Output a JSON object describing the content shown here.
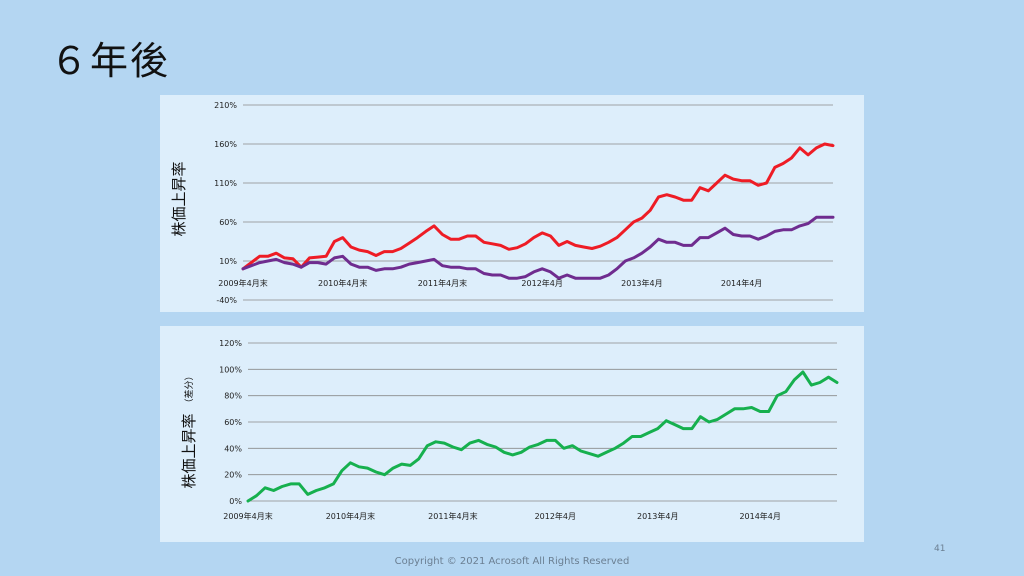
{
  "slide": {
    "title": "６年後",
    "footer": "Copyright © 2021  Acrosoft All Rights Reserved",
    "page_number": "41"
  },
  "chart_data": [
    {
      "type": "line",
      "ylabel": "株価上昇率",
      "ylabel_sub": "",
      "yticks": [
        "210%",
        "160%",
        "110%",
        "60%",
        "10%",
        "-40%"
      ],
      "ylim": [
        -40,
        210
      ],
      "xtick_labels": [
        "2009年4月末",
        "2010年4月末",
        "2011年4月末",
        "2012年4月",
        "2013年4月",
        "2014年4月"
      ],
      "xtick_index": [
        0,
        12,
        24,
        36,
        48,
        60
      ],
      "grid": true,
      "legend": "none",
      "series": [
        {
          "color": "#ee1c25",
          "values": [
            0,
            8,
            16,
            16,
            20,
            14,
            13,
            2,
            14,
            15,
            16,
            35,
            40,
            28,
            24,
            22,
            17,
            22,
            22,
            26,
            33,
            40,
            48,
            55,
            44,
            38,
            38,
            42,
            42,
            34,
            32,
            30,
            25,
            27,
            32,
            40,
            46,
            42,
            30,
            35,
            30,
            28,
            26,
            29,
            34,
            40,
            50,
            60,
            65,
            75,
            92,
            95,
            92,
            88,
            88,
            104,
            100,
            110,
            120,
            115,
            113,
            113,
            107,
            110,
            130,
            135,
            142,
            155,
            146,
            155,
            160,
            158
          ]
        },
        {
          "color": "#6f2c8f",
          "values": [
            0,
            4,
            8,
            10,
            12,
            8,
            6,
            2,
            8,
            8,
            6,
            14,
            16,
            6,
            2,
            2,
            -2,
            0,
            0,
            2,
            6,
            8,
            10,
            12,
            4,
            2,
            2,
            0,
            0,
            -6,
            -8,
            -8,
            -12,
            -12,
            -10,
            -4,
            0,
            -4,
            -12,
            -8,
            -12,
            -12,
            -12,
            -12,
            -8,
            0,
            10,
            14,
            20,
            28,
            38,
            34,
            34,
            30,
            30,
            40,
            40,
            46,
            52,
            44,
            42,
            42,
            38,
            42,
            48,
            50,
            50,
            55,
            58,
            66,
            66,
            66
          ]
        }
      ]
    },
    {
      "type": "line",
      "ylabel": "株価上昇率",
      "ylabel_sub": "（差分）",
      "yticks": [
        "120%",
        "100%",
        "80%",
        "60%",
        "40%",
        "20%",
        "0%"
      ],
      "ylim": [
        0,
        120
      ],
      "xtick_labels": [
        "2009年4月末",
        "2010年4月末",
        "2011年4月末",
        "2012年4月",
        "2013年4月",
        "2014年4月"
      ],
      "xtick_index": [
        0,
        12,
        24,
        36,
        48,
        60
      ],
      "grid": true,
      "legend": "none",
      "series": [
        {
          "color": "#16b04e",
          "values": [
            0,
            4,
            10,
            8,
            11,
            13,
            13,
            5,
            8,
            10,
            13,
            23,
            29,
            26,
            25,
            22,
            20,
            25,
            28,
            27,
            32,
            42,
            45,
            44,
            41,
            39,
            44,
            46,
            43,
            41,
            37,
            35,
            37,
            41,
            43,
            46,
            46,
            40,
            42,
            38,
            36,
            34,
            37,
            40,
            44,
            49,
            49,
            52,
            55,
            61,
            58,
            55,
            55,
            64,
            60,
            62,
            66,
            70,
            70,
            71,
            68,
            68,
            80,
            83,
            92,
            98,
            88,
            90,
            94,
            90
          ]
        }
      ]
    }
  ]
}
